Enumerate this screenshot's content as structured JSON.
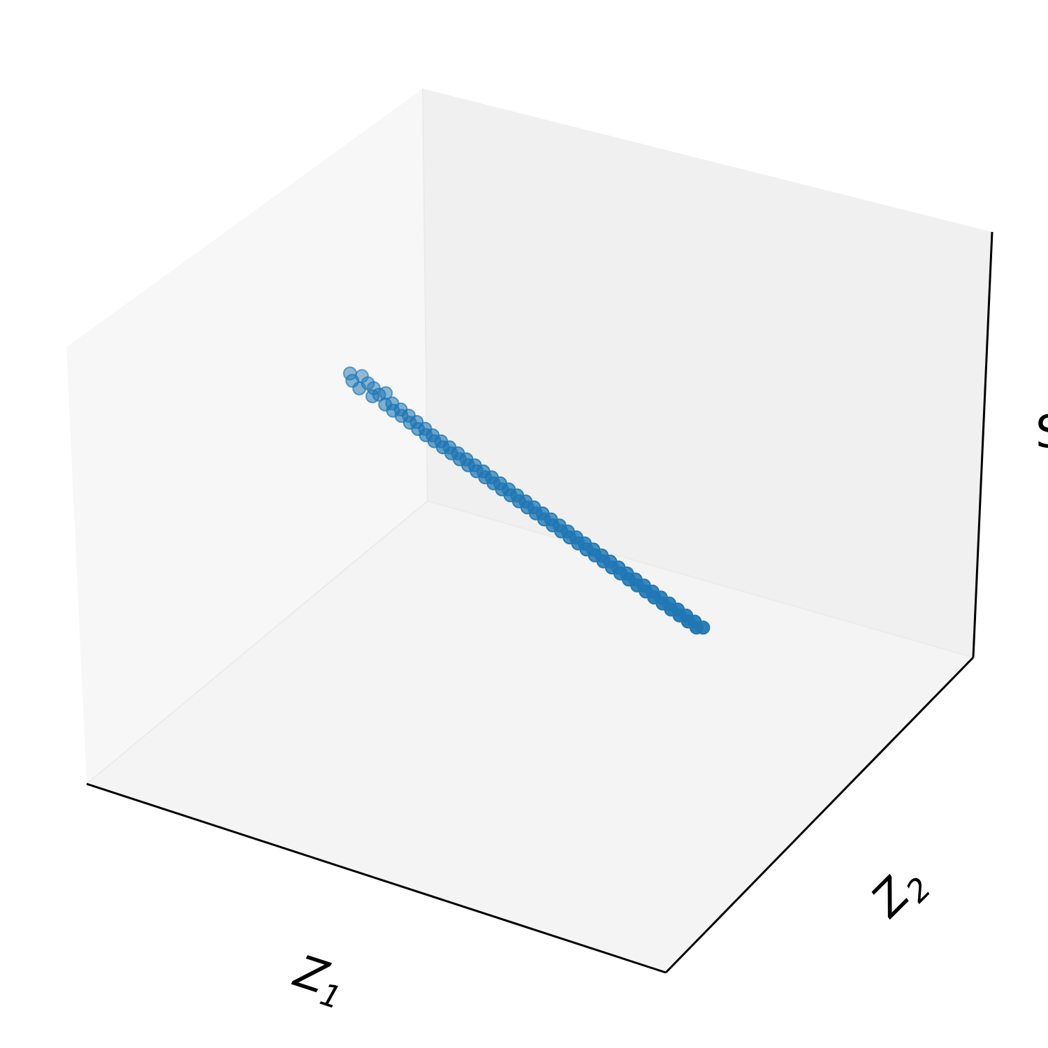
{
  "chart_data": {
    "type": "scatter",
    "projection": "3d",
    "title": "",
    "xlabel": "Z1",
    "ylabel": "Z2",
    "zlabel": "S",
    "axis_ticks": "hidden",
    "grid": false,
    "legend": "none",
    "colors": {
      "points": "#1f77b4",
      "pane_back": "#f0f0f0",
      "pane_side": "#f5f5f5",
      "pane_floor": "#f3f3f3",
      "axis_line": "#000000"
    },
    "series": [
      {
        "values_description_omitted": true,
        "points": [
          [
            -2.0,
            0.3,
            0.5
          ],
          [
            -1.95,
            0.25,
            0.45
          ],
          [
            -1.9,
            0.35,
            0.5
          ],
          [
            -1.85,
            0.2,
            0.42
          ],
          [
            -1.8,
            0.28,
            0.48
          ],
          [
            -1.75,
            0.3,
            0.44
          ],
          [
            -1.7,
            0.18,
            0.4
          ],
          [
            -1.65,
            0.22,
            0.43
          ],
          [
            -1.6,
            0.26,
            0.46
          ],
          [
            -1.55,
            0.15,
            0.38
          ],
          [
            -1.5,
            0.2,
            0.4
          ],
          [
            -1.45,
            0.12,
            0.36
          ],
          [
            -1.4,
            0.18,
            0.38
          ],
          [
            -1.35,
            0.1,
            0.35
          ],
          [
            -1.3,
            0.15,
            0.36
          ],
          [
            -1.25,
            0.08,
            0.32
          ],
          [
            -1.2,
            0.12,
            0.34
          ],
          [
            -1.15,
            0.05,
            0.3
          ],
          [
            -1.1,
            0.1,
            0.31
          ],
          [
            -1.05,
            0.02,
            0.28
          ],
          [
            -1.0,
            0.06,
            0.29
          ],
          [
            -0.95,
            0.0,
            0.26
          ],
          [
            -0.9,
            0.04,
            0.27
          ],
          [
            -0.85,
            -0.02,
            0.24
          ],
          [
            -0.8,
            0.02,
            0.25
          ],
          [
            -0.75,
            -0.04,
            0.22
          ],
          [
            -0.7,
            0.0,
            0.23
          ],
          [
            -0.65,
            -0.06,
            0.2
          ],
          [
            -0.6,
            -0.02,
            0.21
          ],
          [
            -0.55,
            -0.08,
            0.18
          ],
          [
            -0.5,
            -0.04,
            0.19
          ],
          [
            -0.45,
            -0.1,
            0.16
          ],
          [
            -0.4,
            -0.06,
            0.17
          ],
          [
            -0.35,
            -0.12,
            0.14
          ],
          [
            -0.3,
            -0.08,
            0.15
          ],
          [
            -0.25,
            -0.14,
            0.12
          ],
          [
            -0.2,
            -0.1,
            0.13
          ],
          [
            -0.15,
            -0.16,
            0.1
          ],
          [
            -0.1,
            -0.12,
            0.11
          ],
          [
            -0.05,
            -0.18,
            0.08
          ],
          [
            0.0,
            -0.14,
            0.09
          ],
          [
            0.05,
            -0.2,
            0.06
          ],
          [
            0.1,
            -0.16,
            0.07
          ],
          [
            0.15,
            -0.22,
            0.04
          ],
          [
            0.2,
            -0.18,
            0.05
          ],
          [
            0.25,
            -0.24,
            0.02
          ],
          [
            0.3,
            -0.2,
            0.03
          ],
          [
            0.35,
            -0.26,
            0.0
          ],
          [
            0.4,
            -0.22,
            0.01
          ],
          [
            0.45,
            -0.28,
            -0.02
          ],
          [
            0.5,
            -0.24,
            -0.01
          ],
          [
            0.55,
            -0.3,
            -0.04
          ],
          [
            0.6,
            -0.26,
            -0.03
          ],
          [
            0.65,
            -0.32,
            -0.06
          ],
          [
            0.7,
            -0.28,
            -0.05
          ],
          [
            0.75,
            -0.34,
            -0.08
          ],
          [
            0.8,
            -0.3,
            -0.07
          ],
          [
            0.85,
            -0.36,
            -0.1
          ],
          [
            0.9,
            -0.32,
            -0.09
          ],
          [
            0.95,
            -0.38,
            -0.12
          ],
          [
            1.0,
            -0.34,
            -0.11
          ],
          [
            1.05,
            -0.4,
            -0.14
          ],
          [
            1.1,
            -0.36,
            -0.13
          ],
          [
            1.15,
            -0.42,
            -0.16
          ],
          [
            1.2,
            -0.38,
            -0.15
          ],
          [
            1.25,
            -0.44,
            -0.18
          ],
          [
            1.3,
            -0.4,
            -0.17
          ],
          [
            1.35,
            -0.46,
            -0.2
          ],
          [
            1.4,
            -0.42,
            -0.19
          ],
          [
            1.45,
            -0.48,
            -0.22
          ],
          [
            1.5,
            -0.44,
            -0.21
          ],
          [
            1.55,
            -0.5,
            -0.24
          ],
          [
            1.6,
            -0.46,
            -0.23
          ],
          [
            1.65,
            -0.52,
            -0.26
          ],
          [
            1.7,
            -0.48,
            -0.25
          ],
          [
            1.75,
            -0.54,
            -0.28
          ],
          [
            1.8,
            -0.5,
            -0.27
          ],
          [
            1.85,
            -0.56,
            -0.3
          ],
          [
            1.9,
            -0.52,
            -0.29
          ],
          [
            1.95,
            -0.58,
            -0.32
          ],
          [
            2.0,
            -0.54,
            -0.31
          ],
          [
            2.05,
            -0.6,
            -0.34
          ],
          [
            2.1,
            -0.56,
            -0.33
          ],
          [
            2.15,
            -0.62,
            -0.36
          ],
          [
            2.2,
            -0.58,
            -0.35
          ]
        ]
      }
    ]
  }
}
